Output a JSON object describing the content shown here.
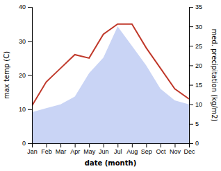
{
  "chart_data": {
    "type": "line",
    "xlabel": "date (month)",
    "ylabel": "max temp (C)",
    "y2label": "med. precipitation (kg/m2)",
    "categories": [
      "Jan",
      "Feb",
      "Mar",
      "Apr",
      "May",
      "Jun",
      "Jul",
      "Aug",
      "Sep",
      "Oct",
      "Nov",
      "Dec"
    ],
    "series": [
      {
        "type": "area",
        "axis": "y2",
        "color": "#c9d4f5",
        "values": [
          8,
          9,
          10,
          12,
          18,
          22,
          30,
          25,
          20,
          14,
          11,
          10
        ]
      },
      {
        "type": "line",
        "color": "#c0392b",
        "values": [
          11,
          18,
          22,
          26,
          25,
          32,
          35,
          35,
          28,
          22,
          16,
          13
        ]
      }
    ],
    "ylim": [
      0,
      40
    ],
    "yticks": [
      0,
      10,
      20,
      30,
      40
    ],
    "y2lim": [
      0,
      35
    ],
    "y2ticks": [
      0,
      5,
      10,
      15,
      20,
      25,
      30,
      35
    ],
    "grid": false
  }
}
